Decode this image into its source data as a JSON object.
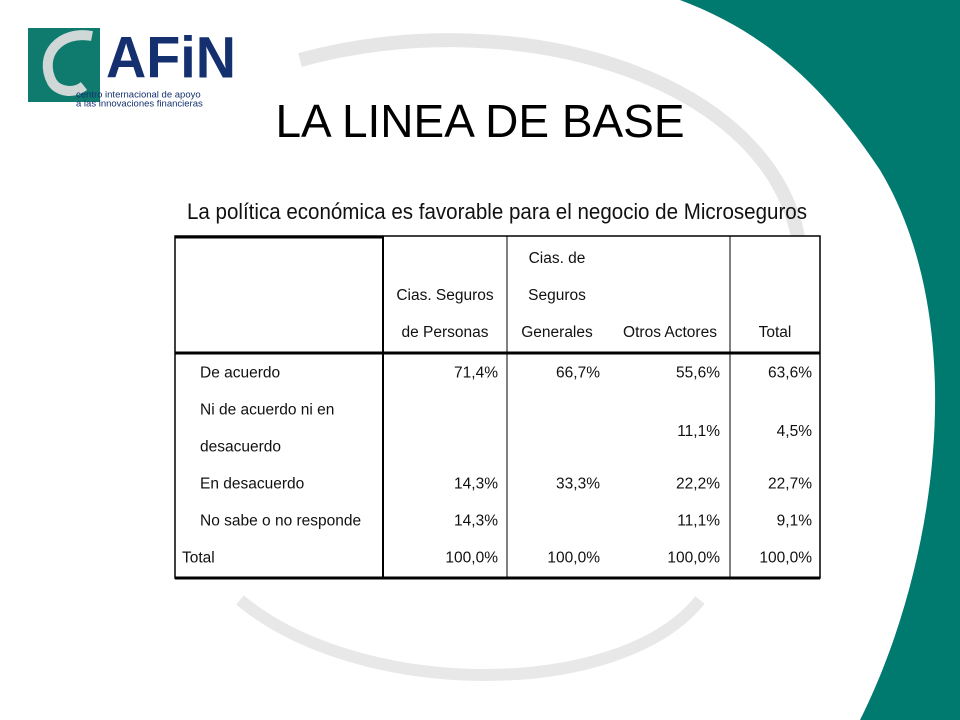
{
  "logo": {
    "mark": "AFiN",
    "tagline": [
      "centro internacional de apoyo",
      "a las innovaciones financieras"
    ]
  },
  "title": "LA LINEA DE BASE",
  "table": {
    "caption": "La política económica es favorable para el negocio de Microseguros",
    "header": [
      null,
      [
        "Cias. Seguros",
        "de Personas"
      ],
      [
        "Cias. de",
        "Seguros",
        "Generales"
      ],
      [
        "Otros Actores"
      ],
      [
        "Total"
      ]
    ],
    "rows": [
      [
        [
          "De acuerdo"
        ],
        "71,4%",
        "66,7%",
        "55,6%",
        "63,6%"
      ],
      [
        [
          "Ni de acuerdo ni en",
          "desacuerdo"
        ],
        null,
        null,
        "11,1%",
        "4,5%"
      ],
      [
        [
          "En desacuerdo"
        ],
        "14,3%",
        "33,3%",
        "22,2%",
        "22,7%"
      ],
      [
        [
          "No sabe o no responde"
        ],
        "14,3%",
        null,
        "11,1%",
        "9,1%"
      ],
      [
        [
          "Total"
        ],
        "100,0%",
        "100,0%",
        "100,0%",
        "100,0%"
      ]
    ]
  }
}
